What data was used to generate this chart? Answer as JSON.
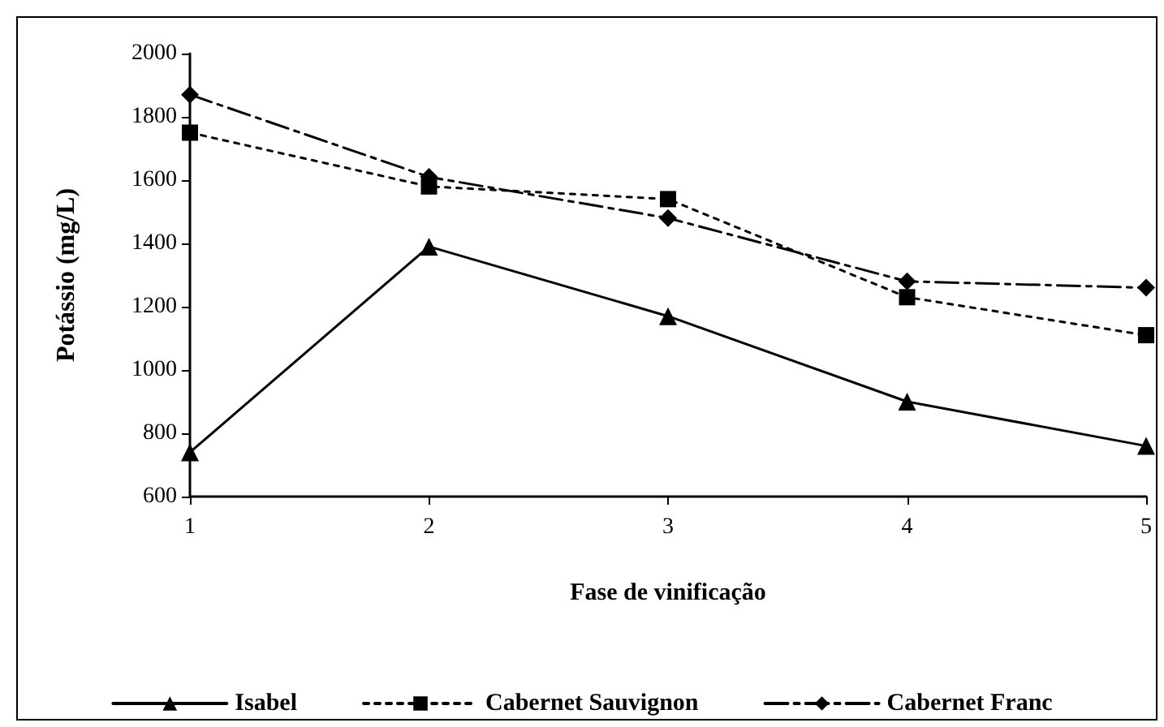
{
  "chart_data": {
    "type": "line",
    "xlabel": "Fase de vinificação",
    "ylabel": "Potássio (mg/L)",
    "x": [
      1,
      2,
      3,
      4,
      5
    ],
    "xlim": [
      1,
      5
    ],
    "xticks": [
      1,
      2,
      3,
      4,
      5
    ],
    "ylim": [
      600,
      2000
    ],
    "yticks": [
      600,
      800,
      1000,
      1200,
      1400,
      1600,
      1800,
      2000
    ],
    "grid": false,
    "legend": "bottom",
    "series": [
      {
        "name": "Isabel",
        "color": "#000000",
        "marker": "triangle",
        "line_style": "solid",
        "values": [
          740,
          1390,
          1170,
          900,
          760
        ]
      },
      {
        "name": "Cabernet Sauvignon",
        "color": "#000000",
        "marker": "square",
        "line_style": "dotted",
        "values": [
          1750,
          1580,
          1540,
          1230,
          1110
        ]
      },
      {
        "name": "Cabernet Franc",
        "color": "#000000",
        "marker": "diamond",
        "line_style": "dashdot",
        "values": [
          1870,
          1610,
          1480,
          1280,
          1260
        ]
      }
    ]
  }
}
